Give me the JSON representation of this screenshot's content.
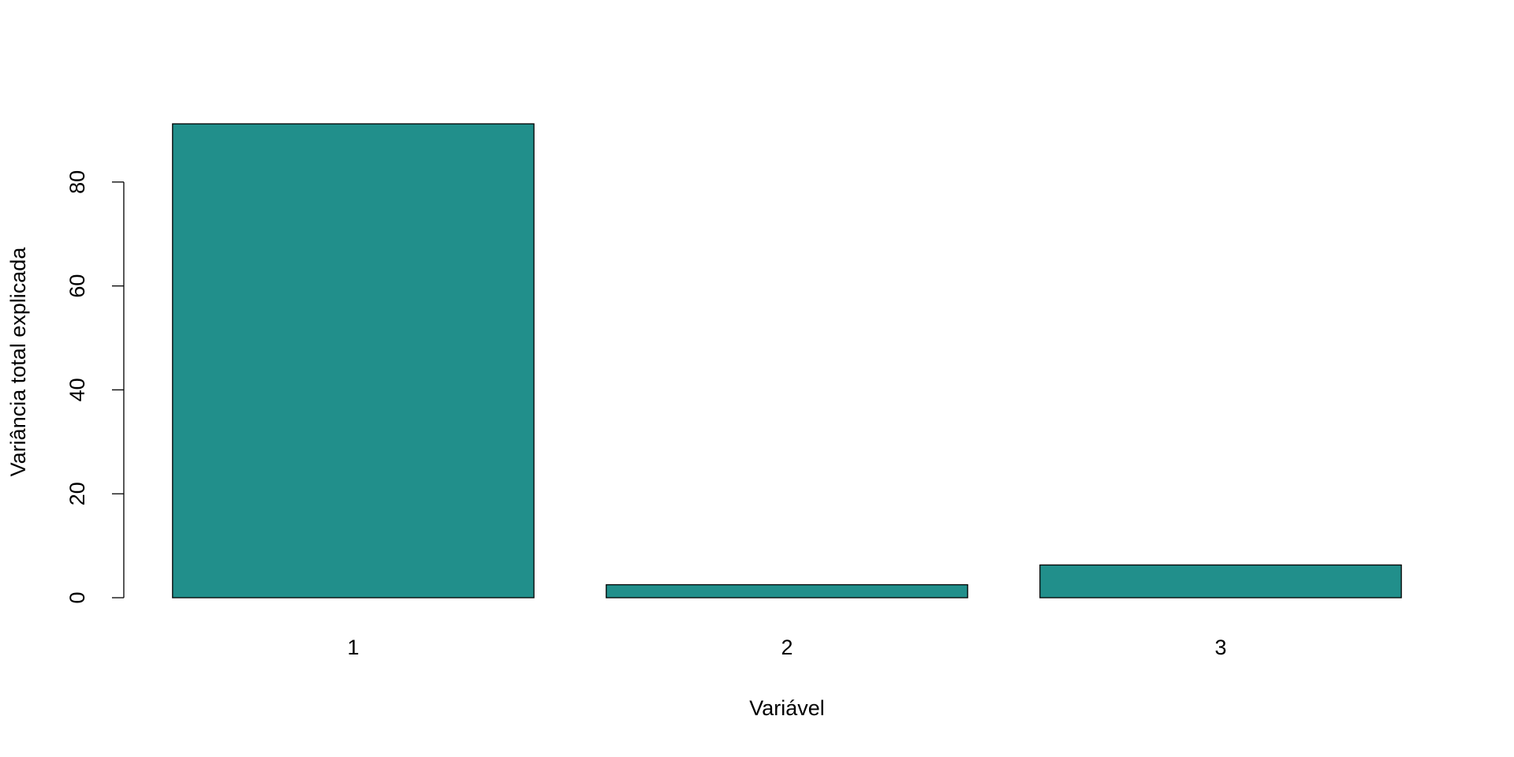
{
  "chart_data": {
    "type": "bar",
    "x_label": "Variável",
    "y_label": "Variância total explicada",
    "categories": [
      "1",
      "2",
      "3"
    ],
    "values": [
      91.2,
      2.5,
      6.3
    ],
    "color": "#218f8b",
    "ylim": [
      0,
      95
    ],
    "yticks": [
      0,
      20,
      40,
      60,
      80
    ]
  }
}
